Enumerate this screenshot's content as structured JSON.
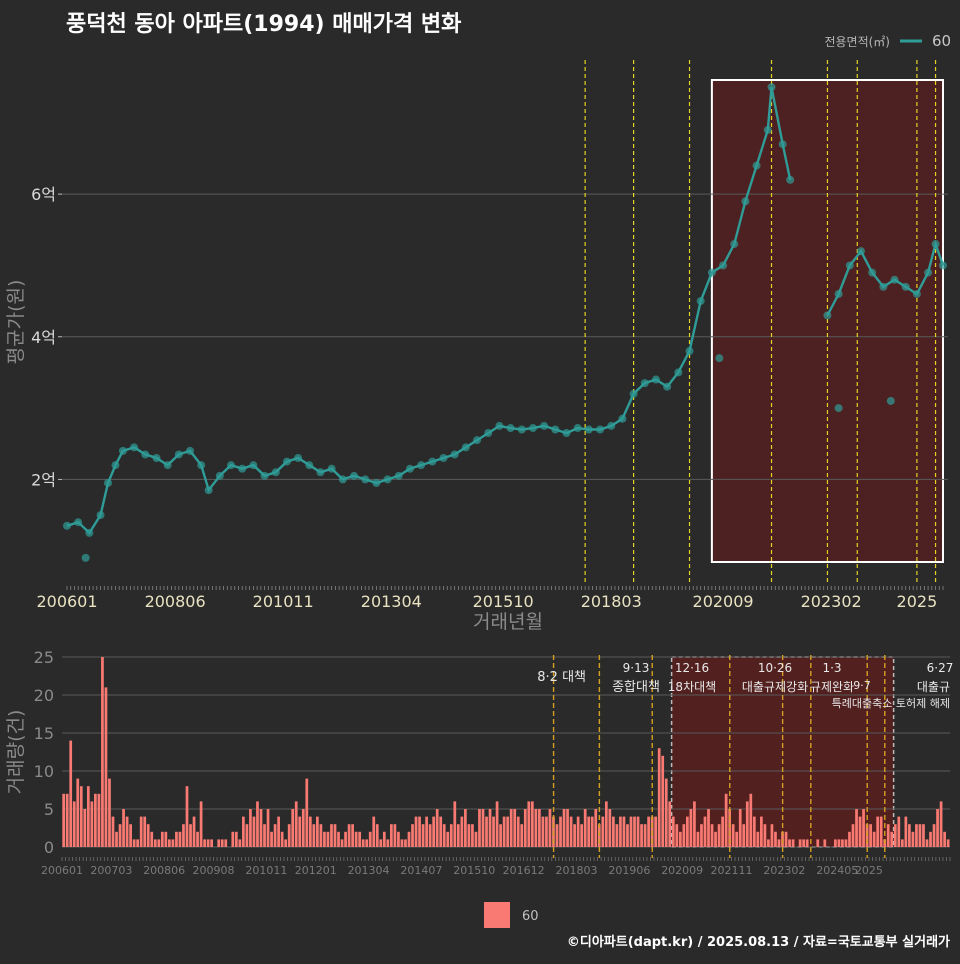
{
  "title": "풍덕천 동아 아파트(1994) 매매가격 변화",
  "credit": "©디아파트(dapt.kr) / 2025.08.13 / 자료=국토교통부 실거래가",
  "colors": {
    "background": "#2a2a2b",
    "price_line": "#2f9c97",
    "bar": "#f87a72",
    "highlight": "#5a1f1f",
    "policy_line": "#e6d223",
    "text": "#d9d9d9"
  },
  "chart_data": [
    {
      "type": "line",
      "title": "풍덕천 동아 아파트(1994) 매매가격 변화",
      "xlabel": "거래년월",
      "ylabel": "평균가(원)",
      "legend": {
        "title": "전용면적(㎡)",
        "entries": [
          "60"
        ],
        "placement": "top-right"
      },
      "x_tick_labels": [
        "200601",
        "200806",
        "201011",
        "201304",
        "201510",
        "201803",
        "202009",
        "202302",
        "2025"
      ],
      "y_tick_labels": [
        "2억",
        "4억",
        "6억"
      ],
      "ylim": [
        0.8,
        7.6
      ],
      "yunit": "억",
      "grid": true,
      "highlight_range": [
        "2020-06",
        "2025-08"
      ],
      "policy_dates": [
        "2017-08",
        "2018-09",
        "2019-12",
        "2021-10",
        "2023-01",
        "2023-09",
        "2025-01",
        "2025-06"
      ],
      "series": [
        {
          "name": "60",
          "points": [
            [
              "2006-01",
              1.35
            ],
            [
              "2006-04",
              1.4
            ],
            [
              "2006-07",
              1.25
            ],
            [
              "2006-10",
              1.5
            ],
            [
              "2006-12",
              1.95
            ],
            [
              "2007-02",
              2.2
            ],
            [
              "2007-04",
              2.4
            ],
            [
              "2007-07",
              2.45
            ],
            [
              "2007-10",
              2.35
            ],
            [
              "2008-01",
              2.3
            ],
            [
              "2008-04",
              2.2
            ],
            [
              "2008-07",
              2.35
            ],
            [
              "2008-10",
              2.4
            ],
            [
              "2009-01",
              2.2
            ],
            [
              "2009-03",
              1.85
            ],
            [
              "2009-06",
              2.05
            ],
            [
              "2009-09",
              2.2
            ],
            [
              "2009-12",
              2.15
            ],
            [
              "2010-03",
              2.2
            ],
            [
              "2010-06",
              2.05
            ],
            [
              "2010-09",
              2.1
            ],
            [
              "2010-12",
              2.25
            ],
            [
              "2011-03",
              2.3
            ],
            [
              "2011-06",
              2.2
            ],
            [
              "2011-09",
              2.1
            ],
            [
              "2011-12",
              2.15
            ],
            [
              "2012-03",
              2.0
            ],
            [
              "2012-06",
              2.05
            ],
            [
              "2012-09",
              2.0
            ],
            [
              "2012-12",
              1.95
            ],
            [
              "2013-03",
              2.0
            ],
            [
              "2013-06",
              2.05
            ],
            [
              "2013-09",
              2.15
            ],
            [
              "2013-12",
              2.2
            ],
            [
              "2014-03",
              2.25
            ],
            [
              "2014-06",
              2.3
            ],
            [
              "2014-09",
              2.35
            ],
            [
              "2014-12",
              2.45
            ],
            [
              "2015-03",
              2.55
            ],
            [
              "2015-06",
              2.65
            ],
            [
              "2015-09",
              2.75
            ],
            [
              "2015-12",
              2.72
            ],
            [
              "2016-03",
              2.7
            ],
            [
              "2016-06",
              2.72
            ],
            [
              "2016-09",
              2.75
            ],
            [
              "2016-12",
              2.7
            ],
            [
              "2017-03",
              2.65
            ],
            [
              "2017-06",
              2.72
            ],
            [
              "2017-09",
              2.7
            ],
            [
              "2017-12",
              2.7
            ],
            [
              "2018-03",
              2.75
            ],
            [
              "2018-06",
              2.85
            ],
            [
              "2018-09",
              3.2
            ],
            [
              "2018-12",
              3.35
            ],
            [
              "2019-03",
              3.4
            ],
            [
              "2019-06",
              3.3
            ],
            [
              "2019-09",
              3.5
            ],
            [
              "2019-12",
              3.8
            ],
            [
              "2020-03",
              4.5
            ],
            [
              "2020-06",
              4.9
            ],
            [
              "2020-09",
              5.0
            ],
            [
              "2020-12",
              5.3
            ],
            [
              "2021-03",
              5.9
            ],
            [
              "2021-06",
              6.4
            ],
            [
              "2021-09",
              6.9
            ],
            [
              "2021-10",
              7.5
            ],
            [
              "2022-01",
              6.7
            ],
            [
              "2022-03",
              6.2
            ],
            [
              "2023-01",
              4.3
            ],
            [
              "2023-04",
              4.6
            ],
            [
              "2023-07",
              5.0
            ],
            [
              "2023-10",
              5.2
            ],
            [
              "2024-01",
              4.9
            ],
            [
              "2024-04",
              4.7
            ],
            [
              "2024-07",
              4.8
            ],
            [
              "2024-10",
              4.7
            ],
            [
              "2025-01",
              4.6
            ],
            [
              "2025-04",
              4.9
            ],
            [
              "2025-06",
              5.3
            ],
            [
              "2025-08",
              5.0
            ]
          ],
          "outliers": [
            [
              "2006-06",
              0.9
            ],
            [
              "2020-08",
              3.7
            ],
            [
              "2023-04",
              3.0
            ],
            [
              "2024-06",
              3.1
            ]
          ]
        }
      ]
    },
    {
      "type": "bar",
      "ylabel": "거래량(건)",
      "y_tick_labels": [
        "0",
        "5",
        "10",
        "15",
        "20",
        "25"
      ],
      "ylim": [
        0,
        25
      ],
      "x_tick_labels": [
        "200601",
        "200703",
        "200806",
        "200908",
        "201011",
        "201201",
        "201304",
        "201407",
        "201510",
        "201612",
        "201803",
        "201906",
        "202009",
        "202111",
        "202302",
        "202405",
        "2025"
      ],
      "legend": {
        "entries": [
          "60"
        ],
        "placement": "bottom"
      },
      "highlight_range": [
        "2020-06",
        "2025-08"
      ],
      "policy_events": [
        {
          "date": "2017-08",
          "label": "8·2 대책"
        },
        {
          "date": "2018-09",
          "label": "9·13 종합대책"
        },
        {
          "date": "2019-12",
          "label": "12·16 18차대책"
        },
        {
          "date": "2021-10",
          "label": "10·26 대출규제강화"
        },
        {
          "date": "2023-01",
          "label": "1·3 규제완화"
        },
        {
          "date": "2023-09",
          "label": "9·7 특례대출축소"
        },
        {
          "date": "2025-01",
          "label": "토허제 해제"
        },
        {
          "date": "2025-06",
          "label": "6·27 대출규제"
        }
      ],
      "series": [
        {
          "name": "60",
          "monthly_values": [
            7,
            7,
            14,
            6,
            9,
            8,
            5,
            8,
            6,
            7,
            7,
            25,
            21,
            9,
            4,
            2,
            3,
            5,
            4,
            3,
            1,
            1,
            4,
            4,
            3,
            2,
            1,
            1,
            2,
            2,
            1,
            1,
            2,
            2,
            3,
            8,
            3,
            4,
            2,
            6,
            1,
            1,
            1,
            0,
            1,
            1,
            1,
            0,
            2,
            2,
            1,
            4,
            3,
            5,
            4,
            6,
            5,
            3,
            5,
            2,
            3,
            4,
            2,
            1,
            3,
            5,
            6,
            4,
            5,
            9,
            4,
            3,
            4,
            3,
            2,
            2,
            3,
            3,
            2,
            1,
            2,
            3,
            3,
            2,
            2,
            1,
            1,
            2,
            4,
            3,
            1,
            2,
            1,
            3,
            3,
            2,
            1,
            1,
            2,
            3,
            4,
            4,
            3,
            4,
            3,
            4,
            5,
            4,
            3,
            2,
            3,
            6,
            3,
            4,
            5,
            3,
            3,
            2,
            5,
            5,
            4,
            5,
            4,
            6,
            3,
            4,
            4,
            5,
            5,
            4,
            3,
            5,
            6,
            6,
            5,
            5,
            4,
            4,
            5,
            4,
            3,
            4,
            5,
            5,
            4,
            3,
            4,
            3,
            5,
            4,
            4,
            5,
            3,
            4,
            6,
            5,
            4,
            3,
            4,
            4,
            3,
            4,
            4,
            4,
            3,
            3,
            4,
            4,
            4,
            13,
            12,
            9,
            6,
            4,
            3,
            2,
            3,
            4,
            5,
            6,
            2,
            3,
            4,
            5,
            3,
            2,
            3,
            4,
            7,
            5,
            3,
            2,
            5,
            3,
            6,
            7,
            4,
            2,
            4,
            3,
            1,
            3,
            2,
            1,
            2,
            2,
            1,
            1,
            0,
            1,
            1,
            1,
            0,
            0,
            1,
            0,
            1,
            0,
            0,
            1,
            1,
            1,
            1,
            2,
            3,
            5,
            4,
            5,
            3,
            3,
            2,
            4,
            4,
            1,
            3,
            2,
            3,
            4,
            1,
            4,
            3,
            2,
            3,
            3,
            3,
            1,
            2,
            3,
            5,
            6,
            2,
            1
          ]
        }
      ]
    }
  ]
}
